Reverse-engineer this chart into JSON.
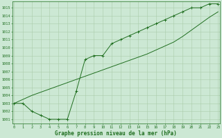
{
  "x": [
    0,
    1,
    2,
    3,
    4,
    5,
    6,
    7,
    8,
    9,
    10,
    11,
    12,
    13,
    14,
    15,
    16,
    17,
    18,
    19,
    20,
    21,
    22,
    23
  ],
  "y_actual": [
    1003,
    1003,
    1002,
    1001.5,
    1001,
    1001,
    1001,
    1004.5,
    1008.5,
    1009,
    1009,
    1010.5,
    1011,
    1011.5,
    1012,
    1012.5,
    1013,
    1013.5,
    1014,
    1014.5,
    1015,
    1015,
    1015.5,
    1015.5
  ],
  "y_trend": [
    1003,
    1003.5,
    1004,
    1004.4,
    1004.8,
    1005.2,
    1005.6,
    1006.0,
    1006.4,
    1006.8,
    1007.2,
    1007.6,
    1008.0,
    1008.4,
    1008.8,
    1009.2,
    1009.7,
    1010.2,
    1010.7,
    1011.4,
    1012.2,
    1013.0,
    1013.8,
    1014.5
  ],
  "color": "#1f6e1f",
  "bg_color": "#cce8d4",
  "grid_color": "#aaccaa",
  "xlabel": "Graphe pression niveau de la mer (hPa)",
  "yticks": [
    1001,
    1002,
    1003,
    1004,
    1005,
    1006,
    1007,
    1008,
    1009,
    1010,
    1011,
    1012,
    1013,
    1014,
    1015
  ],
  "xticks": [
    0,
    1,
    2,
    3,
    4,
    5,
    6,
    7,
    8,
    9,
    10,
    11,
    12,
    13,
    14,
    15,
    16,
    17,
    18,
    19,
    20,
    21,
    22,
    23
  ],
  "xlim": [
    -0.2,
    23.2
  ],
  "ylim": [
    1000.5,
    1015.8
  ]
}
